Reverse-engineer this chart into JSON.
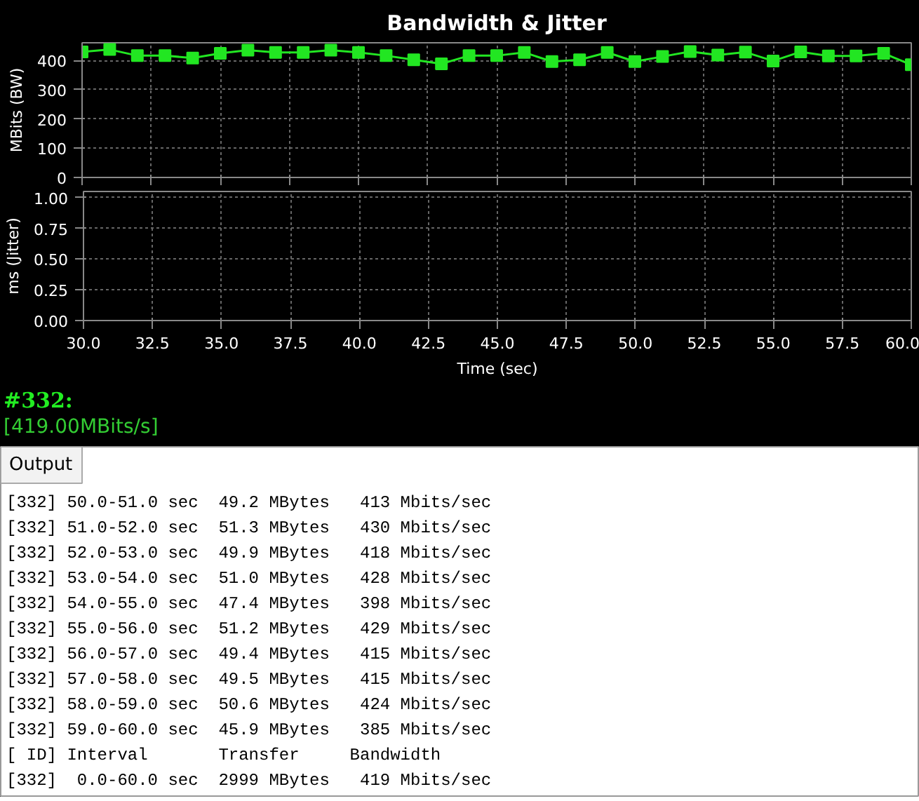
{
  "chart_data": [
    {
      "type": "line",
      "title": "Bandwidth & Jitter",
      "ylabel": "MBits (BW)",
      "marker": "square",
      "grid": true,
      "tick_labels": "y",
      "x": [
        30,
        31,
        32,
        33,
        34,
        35,
        36,
        37,
        38,
        39,
        40,
        41,
        42,
        43,
        44,
        45,
        46,
        47,
        48,
        49,
        50,
        51,
        52,
        53,
        54,
        55,
        56,
        57,
        58,
        59,
        60
      ],
      "series": [
        {
          "color": "#22e622",
          "values": [
            429,
            437,
            416,
            416,
            408,
            424,
            435,
            427,
            427,
            435,
            427,
            416,
            402,
            388,
            416,
            416,
            427,
            396,
            402,
            427,
            396,
            413,
            430,
            418,
            428,
            398,
            429,
            415,
            415,
            424,
            385
          ]
        }
      ],
      "xlim": [
        30,
        60
      ],
      "xticks": [
        30,
        32.5,
        35,
        37.5,
        40,
        42.5,
        45,
        47.5,
        50,
        52.5,
        55,
        57.5,
        60
      ],
      "ylim": [
        0,
        460
      ],
      "yticks": [
        0,
        100,
        200,
        300,
        400
      ]
    },
    {
      "type": "line",
      "ylabel": "ms (Jitter)",
      "xlabel": "Time (sec)",
      "grid": true,
      "xlim": [
        30,
        60
      ],
      "xticks": [
        {
          "value": 30,
          "label": "30.0"
        },
        {
          "value": 32.5,
          "label": "32.5"
        },
        {
          "value": 35,
          "label": "35.0"
        },
        {
          "value": 37.5,
          "label": "37.5"
        },
        {
          "value": 40,
          "label": "40.0"
        },
        {
          "value": 42.5,
          "label": "42.5"
        },
        {
          "value": 45,
          "label": "45.0"
        },
        {
          "value": 47.5,
          "label": "47.5"
        },
        {
          "value": 50,
          "label": "50.0"
        },
        {
          "value": 52.5,
          "label": "52.5"
        },
        {
          "value": 55,
          "label": "55.0"
        },
        {
          "value": 57.5,
          "label": "57.5"
        },
        {
          "value": 60,
          "label": "60.0"
        }
      ],
      "ylim": [
        0,
        1.05
      ],
      "yticks": [
        {
          "value": 0,
          "label": "0.00"
        },
        {
          "value": 0.25,
          "label": "0.25"
        },
        {
          "value": 0.5,
          "label": "0.50"
        },
        {
          "value": 0.75,
          "label": "0.75"
        },
        {
          "value": 1,
          "label": "1.00"
        }
      ],
      "annotations": [
        "#332:",
        "[419.00MBits/s]"
      ]
    },
    {
      "type": "other",
      "title": "Output",
      "annotations": [
        "[332] 50.0-51.0 sec  49.2 MBytes   413 Mbits/sec",
        "[332] 51.0-52.0 sec  51.3 MBytes   430 Mbits/sec",
        "[332] 52.0-53.0 sec  49.9 MBytes   418 Mbits/sec",
        "[332] 53.0-54.0 sec  51.0 MBytes   428 Mbits/sec",
        "[332] 54.0-55.0 sec  47.4 MBytes   398 Mbits/sec",
        "[332] 55.0-56.0 sec  51.2 MBytes   429 Mbits/sec",
        "[332] 56.0-57.0 sec  49.4 MBytes   415 Mbits/sec",
        "[332] 57.0-58.0 sec  49.5 MBytes   415 Mbits/sec",
        "[332] 58.0-59.0 sec  50.6 MBytes   424 Mbits/sec",
        "[332] 59.0-60.0 sec  45.9 MBytes   385 Mbits/sec",
        "[ ID] Interval       Transfer     Bandwidth",
        "[332]  0.0-60.0 sec  2999 MBytes   419 Mbits/sec"
      ]
    }
  ]
}
